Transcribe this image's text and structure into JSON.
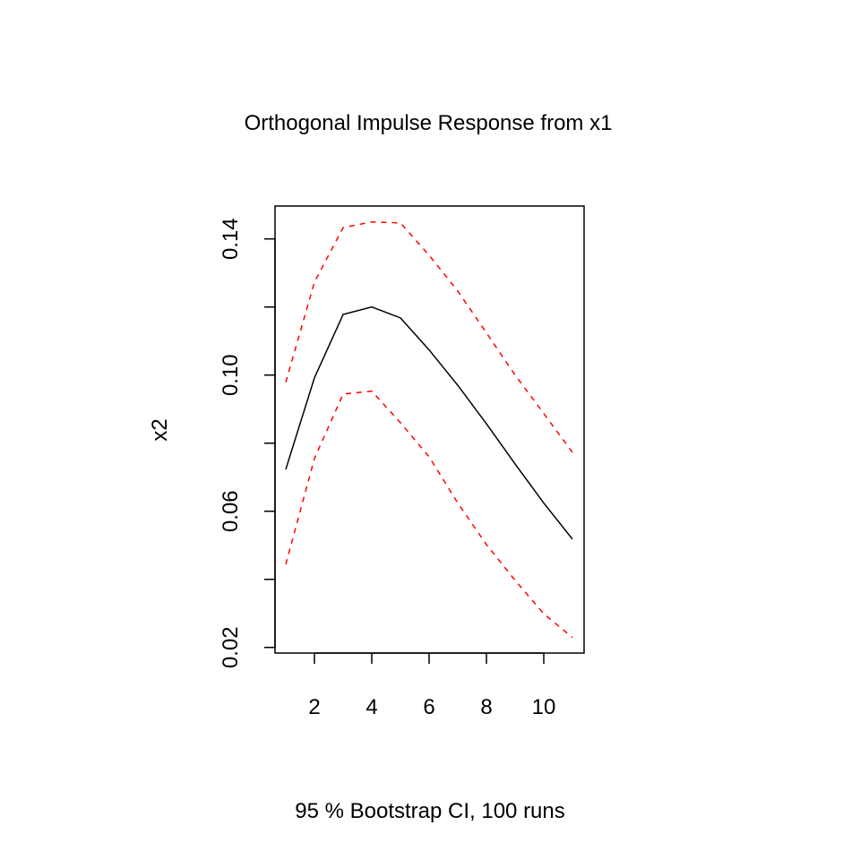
{
  "chart_data": {
    "type": "line",
    "title": "Orthogonal Impulse Response from x1",
    "xlabel": "95 % Bootstrap CI,  100 runs",
    "ylabel": "x2",
    "x": [
      1,
      2,
      3,
      4,
      5,
      6,
      7,
      8,
      9,
      10,
      11
    ],
    "xlim": [
      1,
      11
    ],
    "ylim": [
      0.02,
      0.145
    ],
    "x_ticks": [
      2,
      4,
      6,
      8,
      10
    ],
    "x_tick_labels": [
      "2",
      "4",
      "6",
      "8",
      "10"
    ],
    "y_ticks": [
      0.02,
      0.04,
      0.06,
      0.08,
      0.1,
      0.12,
      0.14
    ],
    "y_tick_labels": [
      "0.02",
      "",
      "0.06",
      "",
      "0.10",
      "",
      "0.14"
    ],
    "grid": false,
    "series": [
      {
        "name": "x2",
        "color": "#000000",
        "style": "solid",
        "values": [
          0.0723,
          0.0992,
          0.1178,
          0.12,
          0.1168,
          0.1074,
          0.097,
          0.0857,
          0.0739,
          0.0624,
          0.0518
        ]
      },
      {
        "name": "upper",
        "color": "#ff0000",
        "style": "dashed",
        "values": [
          0.0979,
          0.1273,
          0.1433,
          0.145,
          0.1447,
          0.1352,
          0.1247,
          0.1124,
          0.1,
          0.0887,
          0.0773
        ]
      },
      {
        "name": "lower",
        "color": "#ff0000",
        "style": "dashed",
        "values": [
          0.0444,
          0.0755,
          0.0944,
          0.0953,
          0.086,
          0.076,
          0.0624,
          0.0502,
          0.0397,
          0.0299,
          0.0229
        ]
      }
    ]
  }
}
